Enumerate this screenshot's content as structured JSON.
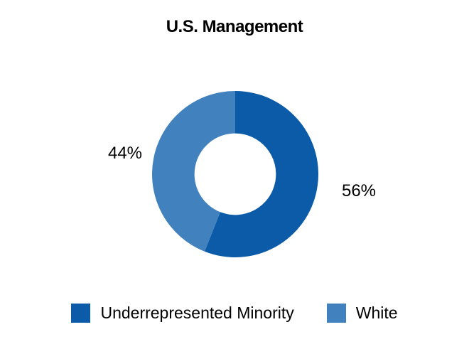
{
  "chart_data": {
    "type": "pie",
    "subtype": "donut",
    "title": "U.S. Management",
    "labels": [
      "Underrepresented Minority",
      "White"
    ],
    "values": [
      56,
      44
    ],
    "value_labels": [
      "56%",
      "44%"
    ],
    "colors": [
      "#0B5BA8",
      "#4182BE"
    ],
    "hole_ratio": 0.49,
    "start_angle_deg": 0,
    "direction": "clockwise",
    "legend_position": "bottom",
    "background": "#FFFFFF",
    "text_color": "#000000"
  }
}
